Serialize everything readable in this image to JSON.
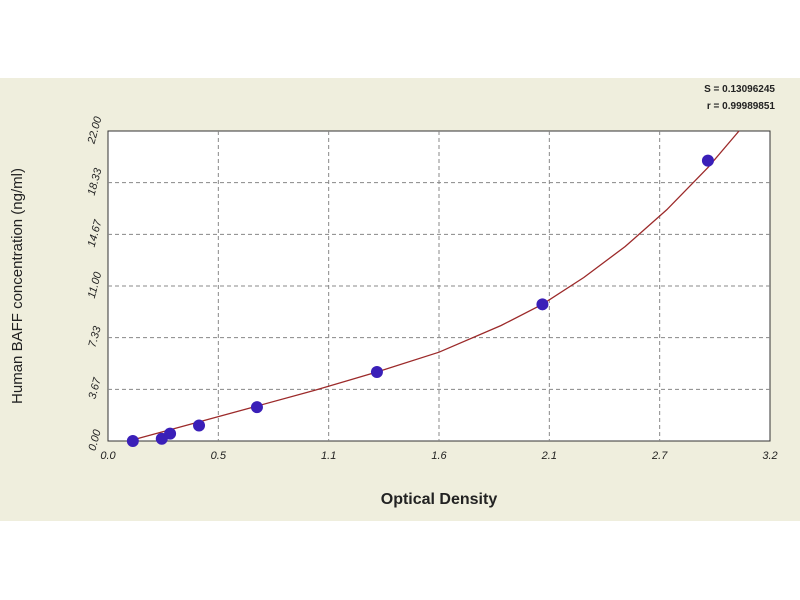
{
  "chart_data": {
    "type": "scatter",
    "title": "",
    "xlabel": "Optical Density",
    "ylabel": "Human BAFF concentration (ng/ml)",
    "xlim": [
      0.0,
      3.2
    ],
    "ylim": [
      0.0,
      22.0
    ],
    "x_ticks": [
      "0.0",
      "0.5",
      "1.1",
      "1.6",
      "2.1",
      "2.7",
      "3.2"
    ],
    "y_ticks": [
      "0.00",
      "3.67",
      "7.33",
      "11.00",
      "14.67",
      "18.33",
      "22.00"
    ],
    "grid": true,
    "stats": [
      "S = 0.13096245",
      "r = 0.99989851"
    ],
    "x": [
      0.12,
      0.26,
      0.3,
      0.44,
      0.72,
      1.3,
      2.1,
      2.9
    ],
    "y": [
      0.0,
      0.16,
      0.52,
      1.1,
      2.4,
      4.9,
      9.7,
      19.9
    ],
    "curve": {
      "x": [
        0.1,
        0.4,
        0.7,
        1.0,
        1.3,
        1.6,
        1.9,
        2.1,
        2.3,
        2.5,
        2.7,
        2.9,
        3.05
      ],
      "y": [
        0.0,
        1.2,
        2.4,
        3.6,
        4.9,
        6.3,
        8.2,
        9.7,
        11.6,
        13.8,
        16.4,
        19.4,
        22.0
      ]
    },
    "colors": {
      "point": "#3a1fb8",
      "curve": "#9c2a2a",
      "background": "#efeedd",
      "plot_area": "#ffffff"
    }
  }
}
